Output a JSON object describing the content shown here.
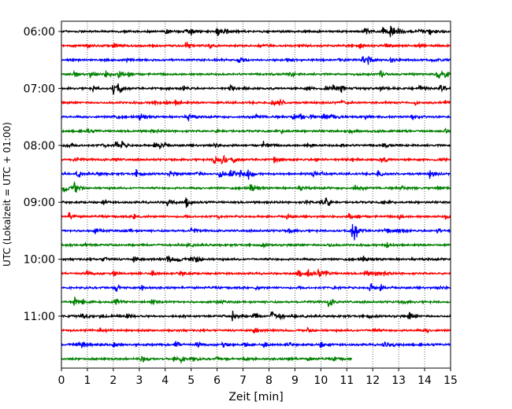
{
  "chart_data": {
    "type": "line",
    "title": "",
    "xlabel": "Zeit  [min]",
    "ylabel": "UTC (Lokalzeit = UTC + 01:00)",
    "xlim": [
      0,
      15
    ],
    "x_ticks": [
      "0",
      "1",
      "2",
      "3",
      "4",
      "5",
      "6",
      "7",
      "8",
      "9",
      "10",
      "11",
      "12",
      "13",
      "14",
      "15"
    ],
    "y_tick_labels": [
      "06:00",
      "07:00",
      "08:00",
      "09:00",
      "10:00",
      "11:00"
    ],
    "grid": "vertical dotted lines at each minute",
    "row_minutes": 15,
    "colors": [
      "#000000",
      "#ff0000",
      "#0000ff",
      "#008000"
    ],
    "rows": [
      {
        "start": "06:00",
        "bursts": [
          [
            4.0,
            0.5
          ],
          [
            4.8,
            0.4
          ],
          [
            5.0,
            0.55
          ],
          [
            6.0,
            0.8
          ],
          [
            6.3,
            0.4
          ],
          [
            11.7,
            0.6
          ],
          [
            12.4,
            0.75
          ],
          [
            12.7,
            1.0
          ],
          [
            13.0,
            0.5
          ],
          [
            13.8,
            0.4
          ],
          [
            14.2,
            0.45
          ]
        ]
      },
      {
        "start": "06:15",
        "bursts": [
          [
            1.0,
            0.3
          ],
          [
            2.0,
            0.6
          ],
          [
            4.8,
            0.6
          ],
          [
            5.7,
            0.3
          ],
          [
            7.5,
            0.4
          ],
          [
            9.2,
            0.3
          ],
          [
            11.5,
            0.4
          ],
          [
            12.5,
            0.4
          ],
          [
            13.8,
            0.4
          ]
        ]
      },
      {
        "start": "06:30",
        "bursts": [
          [
            2.5,
            0.35
          ],
          [
            6.8,
            0.55
          ],
          [
            8.7,
            0.3
          ],
          [
            10.7,
            0.3
          ],
          [
            11.6,
            0.5
          ],
          [
            11.8,
            0.75
          ],
          [
            12.7,
            0.35
          ],
          [
            14.4,
            0.3
          ]
        ]
      },
      {
        "start": "06:45",
        "bursts": [
          [
            0.5,
            0.45
          ],
          [
            1.1,
            0.4
          ],
          [
            1.7,
            0.6
          ],
          [
            2.2,
            0.55
          ],
          [
            2.6,
            0.6
          ],
          [
            8.8,
            0.6
          ],
          [
            12.3,
            0.4
          ],
          [
            14.5,
            0.9
          ],
          [
            14.8,
            0.4
          ]
        ]
      },
      {
        "start": "07:00",
        "bursts": [
          [
            1.2,
            0.4
          ],
          [
            2.0,
            1.0
          ],
          [
            2.2,
            0.5
          ],
          [
            4.7,
            0.4
          ],
          [
            6.5,
            0.4
          ],
          [
            7.0,
            0.3
          ],
          [
            9.5,
            0.4
          ],
          [
            10.2,
            0.5
          ],
          [
            10.5,
            0.6
          ],
          [
            10.8,
            0.5
          ],
          [
            12.3,
            0.35
          ],
          [
            13.8,
            0.4
          ],
          [
            14.6,
            0.6
          ]
        ]
      },
      {
        "start": "07:15",
        "bursts": [
          [
            3.5,
            0.4
          ],
          [
            4.0,
            0.4
          ],
          [
            4.4,
            0.5
          ],
          [
            8.1,
            0.6
          ],
          [
            8.4,
            0.4
          ],
          [
            10.8,
            0.3
          ],
          [
            13.6,
            0.3
          ],
          [
            14.8,
            0.5
          ]
        ]
      },
      {
        "start": "07:30",
        "bursts": [
          [
            2.0,
            0.3
          ],
          [
            3.0,
            0.55
          ],
          [
            4.9,
            0.6
          ],
          [
            7.5,
            0.3
          ],
          [
            8.9,
            0.6
          ],
          [
            9.2,
            0.4
          ],
          [
            9.6,
            0.3
          ],
          [
            10.1,
            0.9
          ],
          [
            10.4,
            0.5
          ],
          [
            11.7,
            0.35
          ],
          [
            13.5,
            0.3
          ]
        ]
      },
      {
        "start": "07:45",
        "bursts": [
          [
            1.0,
            0.3
          ],
          [
            3.5,
            0.3
          ],
          [
            6.0,
            0.3
          ],
          [
            8.5,
            0.3
          ],
          [
            11.1,
            0.35
          ],
          [
            14.8,
            0.5
          ]
        ]
      },
      {
        "start": "08:00",
        "bursts": [
          [
            0.2,
            0.3
          ],
          [
            1.6,
            0.3
          ],
          [
            2.1,
            0.75
          ],
          [
            2.3,
            0.55
          ],
          [
            3.6,
            0.5
          ],
          [
            3.8,
            0.6
          ],
          [
            5.9,
            0.3
          ],
          [
            7.8,
            0.7
          ],
          [
            9.5,
            0.3
          ],
          [
            10.8,
            0.3
          ],
          [
            12.4,
            0.3
          ]
        ]
      },
      {
        "start": "08:15",
        "bursts": [
          [
            0.5,
            0.4
          ],
          [
            2.0,
            0.3
          ],
          [
            5.9,
            1.0
          ],
          [
            6.2,
            0.8
          ],
          [
            6.6,
            0.4
          ],
          [
            8.2,
            0.5
          ],
          [
            9.8,
            0.3
          ],
          [
            11.2,
            0.3
          ],
          [
            12.3,
            0.55
          ],
          [
            14.6,
            0.3
          ]
        ]
      },
      {
        "start": "08:30",
        "bursts": [
          [
            0.6,
            0.4
          ],
          [
            1.4,
            0.3
          ],
          [
            2.9,
            0.75
          ],
          [
            4.2,
            0.5
          ],
          [
            5.2,
            0.4
          ],
          [
            6.1,
            0.9
          ],
          [
            6.5,
            1.0
          ],
          [
            6.9,
            0.9
          ],
          [
            7.2,
            0.7
          ],
          [
            9.7,
            0.4
          ],
          [
            10.0,
            0.4
          ],
          [
            12.2,
            0.7
          ],
          [
            14.2,
            0.8
          ]
        ]
      },
      {
        "start": "08:45",
        "bursts": [
          [
            0.1,
            0.8
          ],
          [
            0.5,
            1.0
          ],
          [
            7.3,
            0.75
          ],
          [
            9.2,
            0.35
          ],
          [
            11.3,
            0.5
          ],
          [
            13.1,
            0.4
          ],
          [
            14.5,
            0.5
          ]
        ]
      },
      {
        "start": "09:00",
        "bursts": [
          [
            1.6,
            0.3
          ],
          [
            4.1,
            0.9
          ],
          [
            4.8,
            0.75
          ],
          [
            9.4,
            0.3
          ],
          [
            10.0,
            0.6
          ],
          [
            10.2,
            0.9
          ],
          [
            12.4,
            0.3
          ]
        ]
      },
      {
        "start": "09:15",
        "bursts": [
          [
            0.3,
            0.6
          ],
          [
            2.8,
            0.4
          ],
          [
            6.0,
            0.3
          ],
          [
            8.7,
            0.3
          ],
          [
            11.1,
            0.55
          ],
          [
            11.4,
            0.4
          ],
          [
            13.0,
            0.3
          ],
          [
            14.8,
            0.3
          ]
        ]
      },
      {
        "start": "09:30",
        "bursts": [
          [
            1.3,
            0.6
          ],
          [
            2.5,
            0.3
          ],
          [
            5.0,
            0.3
          ],
          [
            8.8,
            0.45
          ],
          [
            11.2,
            0.9
          ],
          [
            11.3,
            1.0
          ],
          [
            12.5,
            0.5
          ],
          [
            13.0,
            0.4
          ],
          [
            14.5,
            0.45
          ]
        ]
      },
      {
        "start": "09:45",
        "bursts": [
          [
            0.9,
            0.3
          ],
          [
            4.8,
            0.3
          ],
          [
            7.7,
            0.3
          ],
          [
            10.3,
            0.3
          ],
          [
            12.5,
            0.4
          ]
        ]
      },
      {
        "start": "10:00",
        "bursts": [
          [
            1.6,
            0.5
          ],
          [
            2.8,
            0.45
          ],
          [
            4.1,
            0.7
          ],
          [
            4.5,
            0.4
          ],
          [
            5.0,
            0.55
          ],
          [
            5.2,
            0.5
          ],
          [
            11.6,
            0.5
          ]
        ]
      },
      {
        "start": "10:15",
        "bursts": [
          [
            1.0,
            0.3
          ],
          [
            2.0,
            0.35
          ],
          [
            3.5,
            0.4
          ],
          [
            4.6,
            0.5
          ],
          [
            9.1,
            0.6
          ],
          [
            9.5,
            0.6
          ],
          [
            9.9,
            0.5
          ],
          [
            10.2,
            0.35
          ],
          [
            11.7,
            0.45
          ],
          [
            12.1,
            0.4
          ],
          [
            12.4,
            0.4
          ]
        ]
      },
      {
        "start": "10:30",
        "bursts": [
          [
            2.1,
            0.6
          ],
          [
            3.1,
            0.3
          ],
          [
            7.5,
            0.3
          ],
          [
            10.5,
            0.3
          ],
          [
            11.9,
            0.8
          ],
          [
            12.3,
            0.55
          ],
          [
            14.5,
            0.3
          ]
        ]
      },
      {
        "start": "10:45",
        "bursts": [
          [
            0.5,
            1.0
          ],
          [
            0.8,
            0.5
          ],
          [
            2.1,
            0.6
          ],
          [
            3.5,
            0.5
          ],
          [
            6.0,
            0.3
          ],
          [
            10.3,
            0.75
          ],
          [
            13.2,
            0.3
          ]
        ]
      },
      {
        "start": "11:00",
        "bursts": [
          [
            0.8,
            0.55
          ],
          [
            1.5,
            0.3
          ],
          [
            2.5,
            0.3
          ],
          [
            6.6,
            0.9
          ],
          [
            7.4,
            0.6
          ],
          [
            8.1,
            0.7
          ],
          [
            8.4,
            0.4
          ],
          [
            9.0,
            0.3
          ],
          [
            11.8,
            0.35
          ],
          [
            13.4,
            0.6
          ]
        ]
      },
      {
        "start": "11:15",
        "bursts": [
          [
            1.5,
            0.3
          ],
          [
            7.4,
            0.55
          ],
          [
            9.5,
            0.4
          ],
          [
            12.0,
            0.3
          ],
          [
            14.0,
            0.3
          ]
        ]
      },
      {
        "start": "11:30",
        "bursts": [
          [
            0.7,
            0.8
          ],
          [
            2.0,
            0.6
          ],
          [
            4.4,
            0.6
          ],
          [
            5.2,
            0.4
          ],
          [
            6.2,
            0.4
          ],
          [
            7.0,
            0.4
          ],
          [
            7.8,
            0.4
          ],
          [
            8.7,
            0.3
          ],
          [
            10.0,
            0.6
          ],
          [
            12.4,
            0.5
          ],
          [
            12.8,
            0.4
          ]
        ]
      },
      {
        "start": "11:45",
        "bursts": [
          [
            3.1,
            0.7
          ],
          [
            4.3,
            0.55
          ],
          [
            4.6,
            0.5
          ],
          [
            5.0,
            0.45
          ],
          [
            6.0,
            0.35
          ],
          [
            7.0,
            0.3
          ],
          [
            8.8,
            0.3
          ],
          [
            9.5,
            0.3
          ],
          [
            10.5,
            0.3
          ]
        ],
        "end_x": 11.2
      }
    ]
  }
}
